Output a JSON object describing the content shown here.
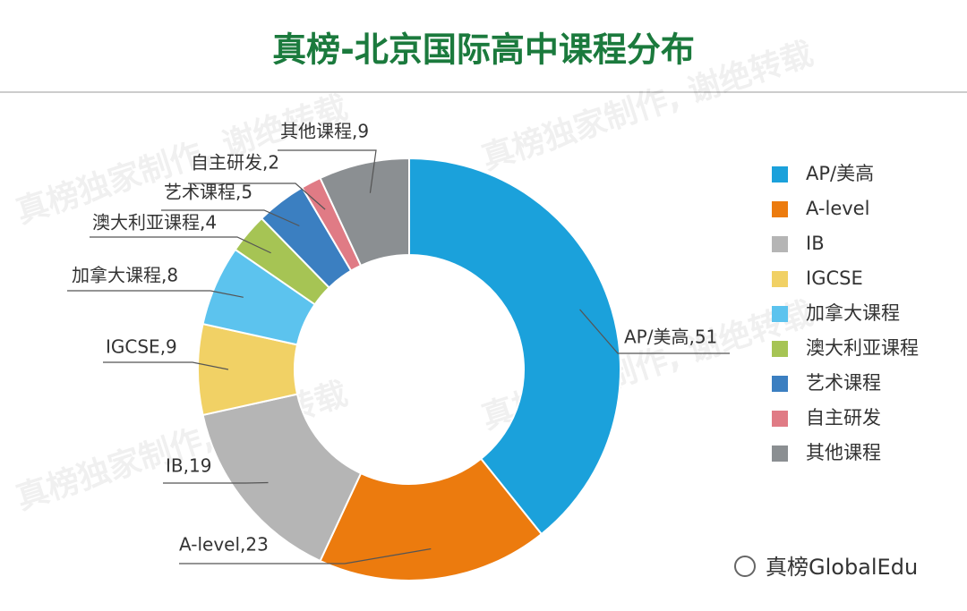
{
  "chart_data": {
    "type": "donut",
    "title": "真榜-北京国际高中课程分布",
    "categories": [
      "AP/美高",
      "A-level",
      "IB",
      "IGCSE",
      "加拿大课程",
      "澳大利亚课程",
      "艺术课程",
      "自主研发",
      "其他课程"
    ],
    "values": [
      51,
      23,
      19,
      9,
      8,
      4,
      5,
      2,
      9
    ],
    "value_labels": [
      "AP/美高,51",
      "A-level,23",
      "IB,19",
      "IGCSE,9",
      "加拿大课程,8",
      "澳大利亚课程,4",
      "艺术课程,5",
      "自主研发,2",
      "其他课程,9"
    ],
    "colors": [
      "#1ba1db",
      "#ec7b0e",
      "#b5b5b5",
      "#f1d165",
      "#5cc3ee",
      "#a6c454",
      "#3b7fc1",
      "#e07b85",
      "#8b8f92"
    ],
    "legend": "right",
    "watermark": "真榜独家制作, 谢绝转载",
    "footer": "真榜GlobalEdu"
  }
}
